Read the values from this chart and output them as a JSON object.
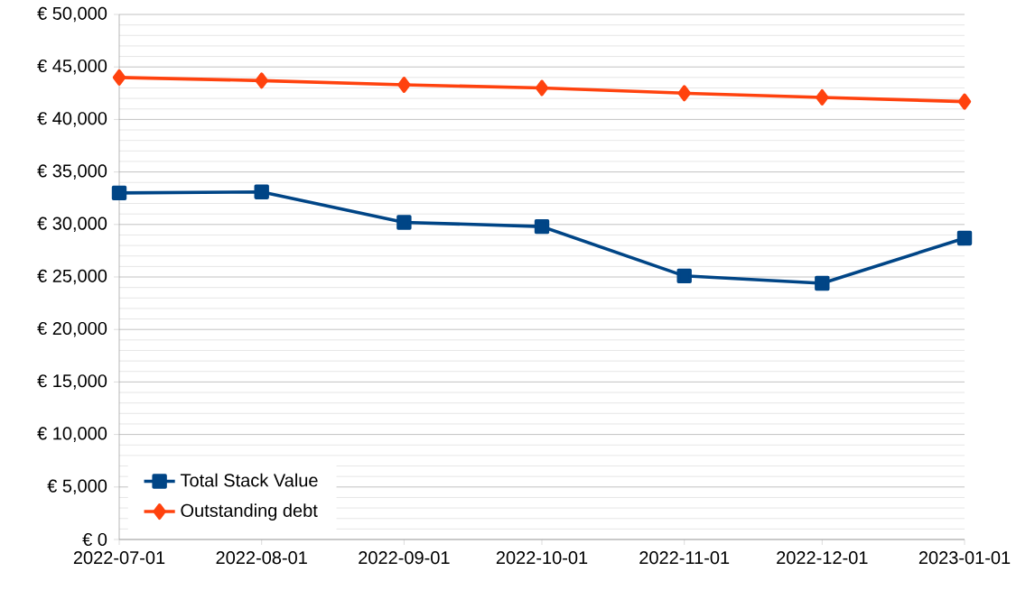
{
  "chart_data": {
    "type": "line",
    "x": [
      "2022-07-01",
      "2022-08-01",
      "2022-09-01",
      "2022-10-01",
      "2022-11-01",
      "2022-12-01",
      "2023-01-01"
    ],
    "series": [
      {
        "name": "Total Stack Value",
        "color": "#004586",
        "marker": "square",
        "values": [
          33000,
          33100,
          30200,
          29800,
          25100,
          24400,
          28700
        ]
      },
      {
        "name": "Outstanding debt",
        "color": "#ff420e",
        "marker": "diamond",
        "values": [
          44000,
          43700,
          43300,
          43000,
          42500,
          42100,
          41700
        ]
      }
    ],
    "xlim": [
      "2022-07-01",
      "2023-01-01"
    ],
    "xticks": [
      "2022-07-01",
      "2022-08-01",
      "2022-09-01",
      "2022-10-01",
      "2022-11-01",
      "2022-12-01",
      "2023-01-01"
    ],
    "ylim": [
      0,
      50000
    ],
    "yticks": [
      {
        "value": 0,
        "label": "€ 0"
      },
      {
        "value": 5000,
        "label": "€ 5,000"
      },
      {
        "value": 10000,
        "label": "€ 10,000"
      },
      {
        "value": 15000,
        "label": "€ 15,000"
      },
      {
        "value": 20000,
        "label": "€ 20,000"
      },
      {
        "value": 25000,
        "label": "€ 25,000"
      },
      {
        "value": 30000,
        "label": "€ 30,000"
      },
      {
        "value": 35000,
        "label": "€ 35,000"
      },
      {
        "value": 40000,
        "label": "€ 40,000"
      },
      {
        "value": 45000,
        "label": "€ 45,000"
      },
      {
        "value": 50000,
        "label": "€ 50,000"
      }
    ],
    "grid": "y",
    "legend": "bottom left",
    "line_style": "solid"
  }
}
